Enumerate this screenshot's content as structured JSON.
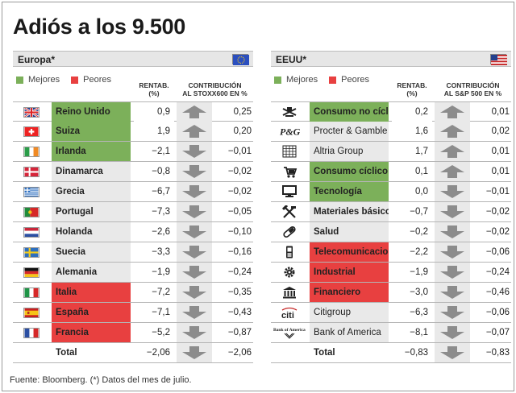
{
  "title": "Adiós a los 9.500",
  "source": "Fuente: Bloomberg. (*) Datos del mes de julio.",
  "legend": {
    "good": "Mejores",
    "bad": "Peores"
  },
  "colors": {
    "good": "#7cb05a",
    "bad": "#e84040",
    "arrow": "#8c8c8c"
  },
  "panels": [
    {
      "name": "Europa*",
      "flag_icon": "eu-flag-icon",
      "col_rent": [
        "RENTAB.",
        "(%)"
      ],
      "col_contrib": [
        "CONTRIBUCIÓN",
        "AL STOXX600 EN %"
      ],
      "rows": [
        {
          "icon": "uk-flag-icon",
          "name": "Reino Unido",
          "status": "good",
          "rent": "0,9",
          "dir": "up",
          "contrib": "0,25"
        },
        {
          "icon": "switzerland-flag-icon",
          "name": "Suiza",
          "status": "good",
          "rent": "1,9",
          "dir": "up",
          "contrib": "0,20"
        },
        {
          "icon": "ireland-flag-icon",
          "name": "Irlanda",
          "status": "good",
          "rent": "−2,1",
          "dir": "down",
          "contrib": "−0,01"
        },
        {
          "icon": "denmark-flag-icon",
          "name": "Dinamarca",
          "status": "plain",
          "rent": "−0,8",
          "dir": "down",
          "contrib": "−0,02"
        },
        {
          "icon": "greece-flag-icon",
          "name": "Grecia",
          "status": "plain",
          "rent": "−6,7",
          "dir": "down",
          "contrib": "−0,02"
        },
        {
          "icon": "portugal-flag-icon",
          "name": "Portugal",
          "status": "plain",
          "rent": "−7,3",
          "dir": "down",
          "contrib": "−0,05"
        },
        {
          "icon": "netherlands-flag-icon",
          "name": "Holanda",
          "status": "plain",
          "rent": "−2,6",
          "dir": "down",
          "contrib": "−0,10"
        },
        {
          "icon": "sweden-flag-icon",
          "name": "Suecia",
          "status": "plain",
          "rent": "−3,3",
          "dir": "down",
          "contrib": "−0,16"
        },
        {
          "icon": "germany-flag-icon",
          "name": "Alemania",
          "status": "plain",
          "rent": "−1,9",
          "dir": "down",
          "contrib": "−0,24"
        },
        {
          "icon": "italy-flag-icon",
          "name": "Italia",
          "status": "bad",
          "rent": "−7,2",
          "dir": "down",
          "contrib": "−0,35"
        },
        {
          "icon": "spain-flag-icon",
          "name": "España",
          "status": "bad",
          "rent": "−7,1",
          "dir": "down",
          "contrib": "−0,43"
        },
        {
          "icon": "france-flag-icon",
          "name": "Francia",
          "status": "bad",
          "rent": "−5,2",
          "dir": "down",
          "contrib": "−0,87"
        }
      ],
      "total": {
        "name": "Total",
        "rent": "−2,06",
        "dir": "down",
        "contrib": "−2,06"
      }
    },
    {
      "name": "EEUU*",
      "flag_icon": "us-flag-icon",
      "col_rent": [
        "RENTAB.",
        "(%)"
      ],
      "col_contrib": [
        "CONTRIBUCIÓN",
        "AL S&P 500 EN %"
      ],
      "rows": [
        {
          "icon": "consumer-staples-icon",
          "name": "Consumo no cíclico",
          "status": "good",
          "bold": true,
          "rent": "0,2",
          "dir": "up",
          "contrib": "0,01"
        },
        {
          "icon": "pg-logo-icon",
          "name": "Procter & Gamble",
          "status": "plain",
          "bold": false,
          "rent": "1,6",
          "dir": "up",
          "contrib": "0,02"
        },
        {
          "icon": "altria-logo-icon",
          "name": "Altria Group",
          "status": "plain",
          "bold": false,
          "rent": "1,7",
          "dir": "up",
          "contrib": "0,01"
        },
        {
          "icon": "consumer-cyclical-icon",
          "name": "Consumo cíclico",
          "status": "good",
          "bold": true,
          "rent": "0,1",
          "dir": "up",
          "contrib": "0,01"
        },
        {
          "icon": "monitor-icon",
          "name": "Tecnología",
          "status": "good",
          "bold": true,
          "rent": "0,0",
          "dir": "down",
          "contrib": "−0,01"
        },
        {
          "icon": "tools-icon",
          "name": "Materiales básicos",
          "status": "plain",
          "bold": true,
          "rent": "−0,7",
          "dir": "down",
          "contrib": "−0,02"
        },
        {
          "icon": "pill-icon",
          "name": "Salud",
          "status": "plain",
          "bold": true,
          "rent": "−0,2",
          "dir": "down",
          "contrib": "−0,02"
        },
        {
          "icon": "mobile-phone-icon",
          "name": "Telecomunicaciones",
          "status": "bad",
          "bold": true,
          "rent": "−2,2",
          "dir": "down",
          "contrib": "−0,06"
        },
        {
          "icon": "gear-icon",
          "name": "Industrial",
          "status": "bad",
          "bold": true,
          "rent": "−1,9",
          "dir": "down",
          "contrib": "−0,24"
        },
        {
          "icon": "bank-building-icon",
          "name": "Financiero",
          "status": "bad",
          "bold": true,
          "rent": "−3,0",
          "dir": "down",
          "contrib": "−0,46"
        },
        {
          "icon": "citi-logo-icon",
          "logo_text": "citi",
          "name": "Citigroup",
          "status": "plain",
          "bold": false,
          "rent": "−6,3",
          "dir": "down",
          "contrib": "−0,06"
        },
        {
          "icon": "bank-of-america-logo-icon",
          "logo_text": "Bank of America",
          "name": "Bank of America",
          "status": "plain",
          "bold": false,
          "rent": "−8,1",
          "dir": "down",
          "contrib": "−0,07"
        }
      ],
      "total": {
        "name": "Total",
        "rent": "−0,83",
        "dir": "down",
        "contrib": "−0,83"
      }
    }
  ]
}
